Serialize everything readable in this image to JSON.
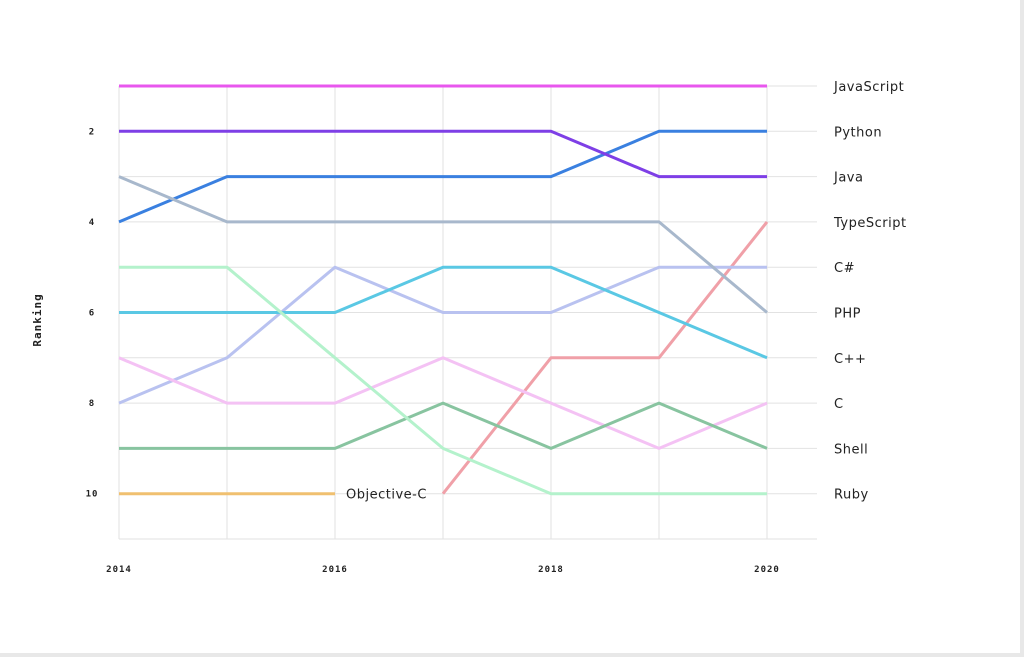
{
  "chart_data": {
    "type": "line",
    "subtype": "bump",
    "title": "",
    "xlabel": "",
    "ylabel": "Ranking",
    "x": [
      2014,
      2015,
      2016,
      2017,
      2018,
      2019,
      2020
    ],
    "xticks": [
      "2014",
      "2016",
      "2018",
      "2020"
    ],
    "yticks": [
      "2",
      "4",
      "6",
      "8",
      "10"
    ],
    "ylim": [
      11,
      1
    ],
    "y_inverted": true,
    "grid": true,
    "series": [
      {
        "name": "JavaScript",
        "color": "#e857ee",
        "values": [
          1,
          1,
          1,
          1,
          1,
          1,
          1
        ]
      },
      {
        "name": "Python",
        "color": "#3a80e0",
        "values": [
          4,
          3,
          3,
          3,
          3,
          2,
          2
        ]
      },
      {
        "name": "Java",
        "color": "#7e3fe6",
        "values": [
          2,
          2,
          2,
          2,
          2,
          3,
          3
        ]
      },
      {
        "name": "TypeScript",
        "color": "#f0a0a8",
        "values": [
          null,
          null,
          null,
          10,
          7,
          7,
          4
        ]
      },
      {
        "name": "C#",
        "color": "#b9c2f0",
        "values": [
          8,
          7,
          5,
          6,
          6,
          5,
          5
        ]
      },
      {
        "name": "PHP",
        "color": "#a8b8cc",
        "values": [
          3,
          4,
          4,
          4,
          4,
          4,
          6
        ]
      },
      {
        "name": "C++",
        "color": "#5ac8e4",
        "values": [
          6,
          6,
          6,
          5,
          5,
          6,
          7
        ]
      },
      {
        "name": "C",
        "color": "#f4c2f4",
        "values": [
          7,
          8,
          8,
          7,
          8,
          9,
          8
        ]
      },
      {
        "name": "Shell",
        "color": "#88c4a0",
        "values": [
          9,
          9,
          9,
          8,
          9,
          8,
          9
        ]
      },
      {
        "name": "Ruby",
        "color": "#b4f2cc",
        "values": [
          5,
          5,
          7,
          9,
          10,
          10,
          10
        ]
      },
      {
        "name": "Objective-C",
        "color": "#f0c070",
        "values": [
          10,
          10,
          10,
          null,
          null,
          null,
          null
        ]
      }
    ]
  }
}
